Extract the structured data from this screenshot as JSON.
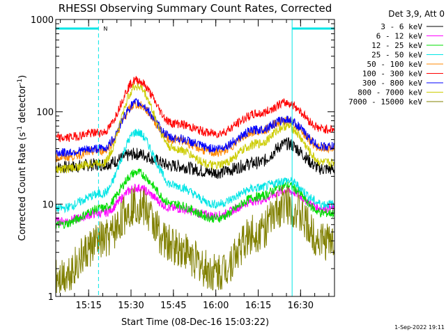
{
  "chart_data": {
    "type": "line",
    "title": "RHESSI Observing Summary Count Rates, Corrected",
    "xlabel": "Start Time (08-Dec-16 15:03:22)",
    "ylabel_main": "Corrected Count Rate (s",
    "ylabel_sup1": "-1",
    "ylabel_mid": " detector",
    "ylabel_sup2": "-1",
    "ylabel_end": ")",
    "y_scale": "log",
    "ylim": [
      1,
      1000
    ],
    "xlim": [
      "15:03:22",
      "16:42:00"
    ],
    "x_ticks": [
      "15:15",
      "15:30",
      "15:45",
      "16:00",
      "16:15",
      "16:30"
    ],
    "y_ticks": [
      "1",
      "10",
      "100",
      "1000"
    ],
    "legend_title": "Det 3,9, Att 0",
    "legend_placement": "right",
    "footer_date": "1-Sep-2022 19:11",
    "annotations": {
      "n_marker": "N",
      "night_bar_start": [
        "15:03:22",
        "15:18:30"
      ],
      "night_bar_end": [
        "16:27:00",
        "16:42:00"
      ],
      "vertical_lines": [
        {
          "time": "15:18:30",
          "style": "dashed"
        },
        {
          "time": "16:27:00",
          "style": "solid"
        },
        {
          "time": "16:42:00",
          "style": "dashed"
        }
      ]
    },
    "peaks": {
      "flare1": "15:32",
      "flare2": "16:25"
    },
    "series": [
      {
        "name": "3 - 6 keV",
        "color": "#000000",
        "values_at": {
          "15:05": 25,
          "15:20": 27,
          "15:32": 35,
          "15:45": 26,
          "16:00": 22,
          "16:15": 28,
          "16:25": 45,
          "16:38": 24
        }
      },
      {
        "name": "6 - 12 keV",
        "color": "#ff00ff",
        "values_at": {
          "15:05": 6.5,
          "15:20": 8,
          "15:32": 15,
          "15:45": 9,
          "16:00": 7.5,
          "16:15": 11,
          "16:25": 14,
          "16:38": 9
        }
      },
      {
        "name": "12 - 25 keV",
        "color": "#00dd00",
        "values_at": {
          "15:05": 6,
          "15:20": 9,
          "15:32": 22,
          "15:45": 10,
          "16:00": 7,
          "16:15": 12,
          "16:25": 16,
          "16:38": 8
        }
      },
      {
        "name": "25 - 50 keV",
        "color": "#00e5e5",
        "values_at": {
          "15:05": 9,
          "15:20": 13,
          "15:32": 60,
          "15:45": 16,
          "16:00": 10,
          "16:15": 15,
          "16:25": 18,
          "16:38": 10
        }
      },
      {
        "name": "50 - 100 keV",
        "color": "#ff8800",
        "values_at": {
          "15:05": 32,
          "15:20": 38,
          "15:32": 120,
          "15:45": 50,
          "16:00": 36,
          "16:15": 62,
          "16:25": 80,
          "16:38": 40
        }
      },
      {
        "name": "100 - 300 keV",
        "color": "#ff0000",
        "values_at": {
          "15:05": 52,
          "15:20": 60,
          "15:32": 220,
          "15:45": 75,
          "16:00": 58,
          "16:15": 95,
          "16:25": 125,
          "16:38": 65
        }
      },
      {
        "name": "300 - 800 keV",
        "color": "#0000ff",
        "values_at": {
          "15:05": 36,
          "15:20": 40,
          "15:32": 125,
          "15:45": 52,
          "16:00": 40,
          "16:15": 64,
          "16:25": 82,
          "16:38": 42
        }
      },
      {
        "name": "800 - 7000 keV",
        "color": "#cccc00",
        "values_at": {
          "15:05": 24,
          "15:20": 28,
          "15:32": 190,
          "15:45": 40,
          "16:00": 26,
          "16:15": 45,
          "16:25": 70,
          "16:38": 28
        }
      },
      {
        "name": "7000 - 15000 keV",
        "color": "#808000",
        "values_at": {
          "15:05": 1.7,
          "15:20": 4,
          "15:32": 10,
          "15:45": 3.5,
          "16:00": 1.8,
          "16:15": 5,
          "16:25": 10,
          "16:38": 4
        }
      }
    ]
  }
}
